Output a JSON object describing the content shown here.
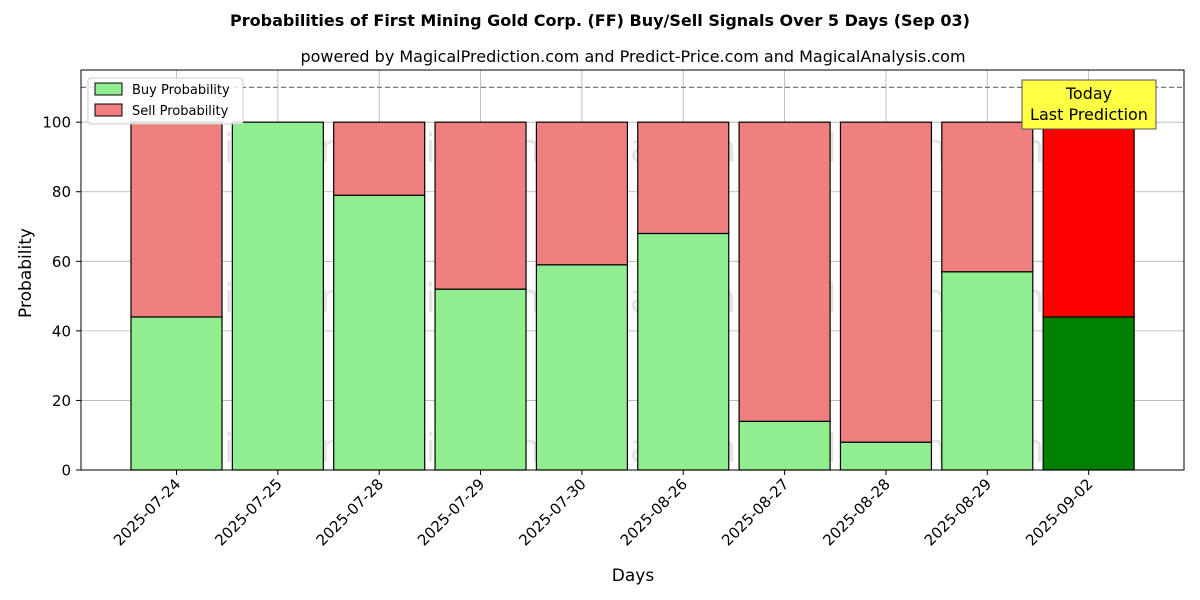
{
  "chart_data": {
    "type": "bar",
    "stacked": true,
    "title": "Probabilities of First Mining Gold Corp. (FF) Buy/Sell Signals Over 5 Days (Sep 03)",
    "subtitle": "powered by MagicalPrediction.com and Predict-Price.com and MagicalAnalysis.com",
    "xlabel": "Days",
    "ylabel": "Probability",
    "ylim": [
      0,
      115
    ],
    "yticks": [
      0,
      20,
      40,
      60,
      80,
      100
    ],
    "reference_line": 110,
    "grid": true,
    "legend_position": "top-left",
    "categories": [
      "2025-07-24",
      "2025-07-25",
      "2025-07-28",
      "2025-07-29",
      "2025-07-30",
      "2025-08-26",
      "2025-08-27",
      "2025-08-28",
      "2025-08-29",
      "2025-09-02"
    ],
    "series": [
      {
        "name": "Buy Probability",
        "values": [
          44,
          100,
          79,
          52,
          59,
          68,
          14,
          8,
          57,
          44
        ]
      },
      {
        "name": "Sell Probability",
        "values": [
          56,
          0,
          21,
          48,
          41,
          32,
          86,
          92,
          43,
          56
        ]
      }
    ],
    "annotation": {
      "line1": "Today",
      "line2": "Last Prediction"
    },
    "watermarks": [
      "MagicalAnalysis.com",
      "MagicalPrediction.com"
    ],
    "colors": {
      "buy": "#90ee90",
      "sell": "#f08080",
      "buy_today": "#008000",
      "sell_today": "#ff0000",
      "annotation_bg": "#ffff44"
    }
  }
}
